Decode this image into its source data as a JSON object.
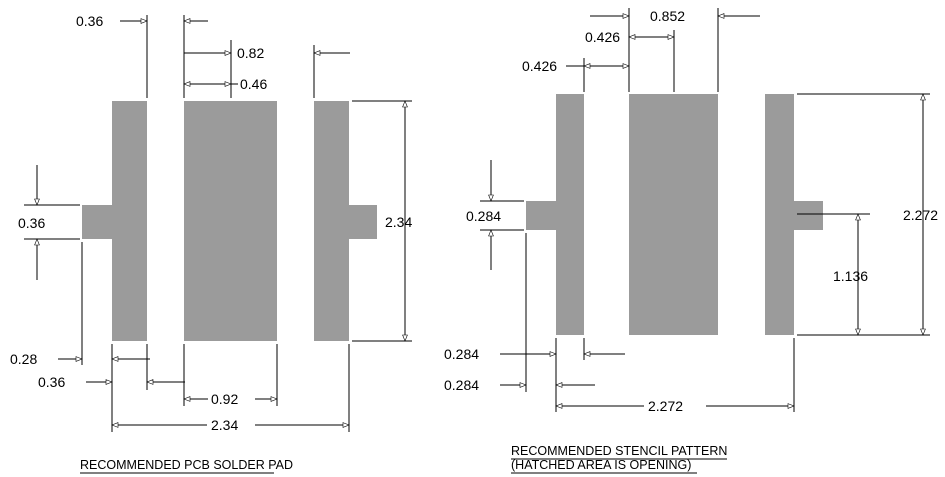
{
  "pcb": {
    "caption": "RECOMMENDED PCB SOLDER PAD",
    "dims": {
      "gap_top": "0.36",
      "pitch_top": "0.82",
      "center_pad_width": "0.46",
      "tab_height": "0.36",
      "overall_height": "2.34",
      "tab_extension": "0.28",
      "left_pad_width": "0.36",
      "center_pad_full": "0.92",
      "overall_width": "2.34"
    }
  },
  "stencil": {
    "caption_line1": "RECOMMENDED STENCIL PATTERN",
    "caption_line2": "(HATCHED AREA IS OPENING)",
    "dims": {
      "center_width": "0.852",
      "half_width": "0.426",
      "gap": "0.426",
      "tab_height": "0.284",
      "overall_height": "2.272",
      "half_height": "1.136",
      "tab_extension": "0.284",
      "left_pad_width": "0.284",
      "overall_width": "2.272"
    }
  },
  "colors": {
    "pad_fill": "#9b9b9b",
    "line": "#000000"
  }
}
